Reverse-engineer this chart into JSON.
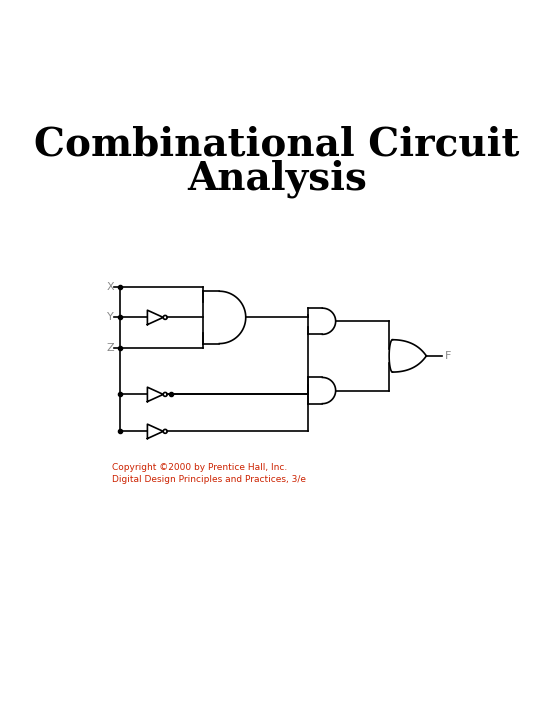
{
  "title_line1": "Combinational Circuit",
  "title_line2": "Analysis",
  "title_fontsize": 28,
  "title_fontweight": "bold",
  "title_fontfamily": "serif",
  "background_color": "#ffffff",
  "circuit_color": "#000000",
  "copyright_line1": "Copyright ©2000 by Prentice Hall, Inc.",
  "copyright_line2": "Digital Design Principles and Practices, 3/e",
  "copyright_color": "#cc2200",
  "copyright_fontsize": 6.5,
  "output_label": "F",
  "input_labels": [
    "X",
    "Y",
    "Z"
  ],
  "input_label_color": "#888888",
  "output_label_color": "#888888"
}
